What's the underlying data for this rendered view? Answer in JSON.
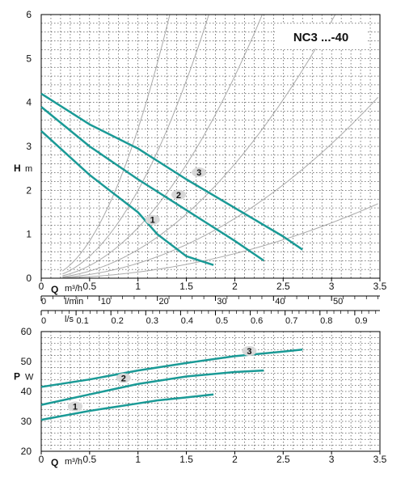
{
  "chart_data": [
    {
      "type": "line",
      "title": "NC3 ...-40",
      "xlabel": "Q",
      "xunit": "m³/h",
      "ylabel": "H",
      "yunit": "m",
      "xlim": [
        0,
        3.5
      ],
      "ylim": [
        0,
        6
      ],
      "xticks": [
        "0",
        "0.5",
        "1",
        "1.5",
        "2",
        "2.5",
        "3",
        "3.5"
      ],
      "yticks": [
        "0",
        "1",
        "2",
        "3",
        "4",
        "5",
        "6"
      ],
      "grid": true,
      "secondary_axes": [
        {
          "unit": "l/min",
          "max": 58.33,
          "ticks": [
            "0",
            "10",
            "20",
            "30",
            "40",
            "50"
          ]
        },
        {
          "unit": "l/s",
          "max": 0.9722,
          "ticks": [
            "0",
            "0.1",
            "0.2",
            "0.3",
            "0.4",
            "0.5",
            "0.6",
            "0.7",
            "0.8",
            "0.9"
          ]
        }
      ],
      "series": [
        {
          "name": "1",
          "x": [
            0,
            0.5,
            1.0,
            1.2,
            1.5,
            1.78
          ],
          "y": [
            3.35,
            2.35,
            1.5,
            1.0,
            0.5,
            0.3
          ]
        },
        {
          "name": "2",
          "x": [
            0,
            0.5,
            1.0,
            1.5,
            2.0,
            2.3
          ],
          "y": [
            3.9,
            3.0,
            2.25,
            1.55,
            0.85,
            0.4
          ]
        },
        {
          "name": "3",
          "x": [
            0,
            0.5,
            1.0,
            1.5,
            2.0,
            2.5,
            2.7
          ],
          "y": [
            4.2,
            3.5,
            2.95,
            2.25,
            1.6,
            0.95,
            0.65
          ]
        }
      ],
      "label_positions": [
        {
          "name": "1",
          "x": 1.15,
          "y": 1.33
        },
        {
          "name": "2",
          "x": 1.42,
          "y": 1.9
        },
        {
          "name": "3",
          "x": 1.63,
          "y": 2.41
        }
      ],
      "system_curve_k": [
        3.4,
        2.0,
        1.15,
        0.65,
        0.34,
        0.14
      ],
      "curve_color": "#1a9a96",
      "system_curve_color": "#aaaaaa"
    },
    {
      "type": "line",
      "xlabel": "Q",
      "xunit": "m³/h",
      "ylabel": "P",
      "yunit": "W",
      "xlim": [
        0,
        3.5
      ],
      "ylim": [
        20,
        60
      ],
      "xticks": [
        "0",
        "0.5",
        "1",
        "1.5",
        "2",
        "2.5",
        "3",
        "3.5"
      ],
      "yticks": [
        "20",
        "30",
        "40",
        "50",
        "60"
      ],
      "grid": true,
      "series": [
        {
          "name": "1",
          "x": [
            0,
            0.5,
            1.0,
            1.2,
            1.5,
            1.78
          ],
          "y": [
            30.5,
            33.5,
            36,
            37,
            38,
            39
          ]
        },
        {
          "name": "2",
          "x": [
            0,
            0.5,
            1.0,
            1.5,
            2.0,
            2.3
          ],
          "y": [
            35.5,
            39,
            42.5,
            45,
            46.5,
            47
          ]
        },
        {
          "name": "3",
          "x": [
            0,
            0.5,
            1.0,
            1.5,
            2.0,
            2.5,
            2.7
          ],
          "y": [
            41.5,
            44,
            47,
            49.5,
            51.8,
            53.3,
            54
          ]
        }
      ],
      "label_positions": [
        {
          "name": "1",
          "x": 0.35,
          "y": 35
        },
        {
          "name": "2",
          "x": 0.85,
          "y": 44.5
        },
        {
          "name": "3",
          "x": 2.15,
          "y": 53.5
        }
      ],
      "curve_color": "#1a9a96"
    }
  ]
}
